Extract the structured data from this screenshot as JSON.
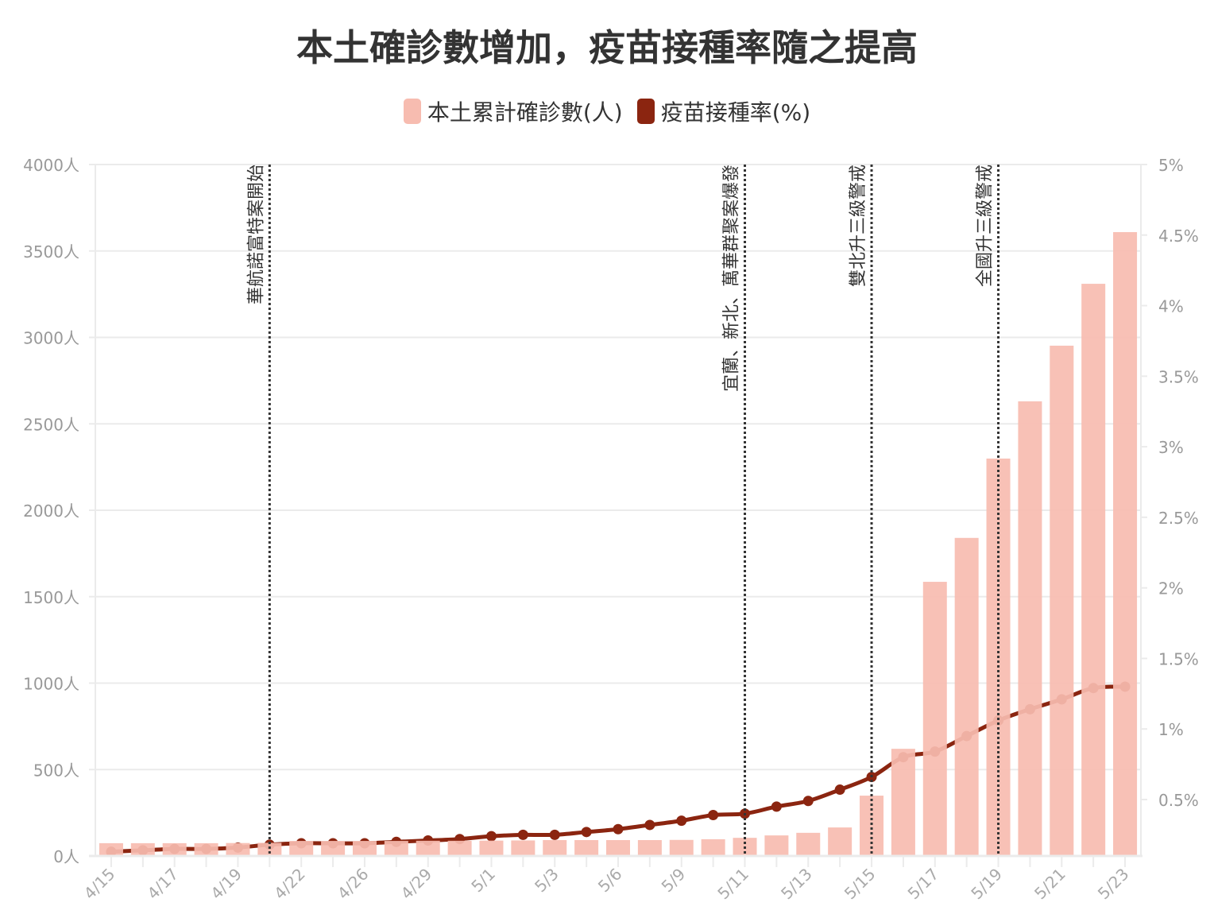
{
  "chart_data": {
    "type": "bar+line",
    "title": "本土確診數增加，疫苗接種率隨之提高",
    "categories": [
      "4/15",
      "",
      "4/17",
      "",
      "4/19",
      "",
      "4/22",
      "",
      "4/26",
      "",
      "4/29",
      "",
      "5/1",
      "",
      "5/3",
      "",
      "5/6",
      "",
      "5/9",
      "",
      "5/11",
      "",
      "5/13",
      "",
      "5/15",
      "",
      "5/17",
      "",
      "5/19",
      "",
      "5/21",
      "",
      "5/23"
    ],
    "series": [
      {
        "name": "本土累計確診數(人)",
        "type": "bar",
        "axis": "left",
        "color": "#f7bcb0",
        "values": [
          74,
          74,
          74,
          74,
          75,
          76,
          87,
          87,
          87,
          87,
          88,
          88,
          89,
          90,
          92,
          92,
          92,
          92,
          93,
          97,
          105,
          119,
          134,
          165,
          349,
          620,
          1586,
          1840,
          2299,
          2630,
          2952,
          3310,
          3609
        ]
      },
      {
        "name": "疫苗接種率(%)",
        "type": "line",
        "axis": "right",
        "color": "#8b2510",
        "values": [
          0.13,
          0.14,
          0.15,
          0.15,
          0.16,
          0.18,
          0.19,
          0.19,
          0.19,
          0.2,
          0.21,
          0.22,
          0.24,
          0.25,
          0.25,
          0.27,
          0.29,
          0.32,
          0.35,
          0.39,
          0.4,
          0.45,
          0.49,
          0.57,
          0.66,
          0.8,
          0.84,
          0.95,
          1.06,
          1.14,
          1.21,
          1.29,
          1.3
        ]
      }
    ],
    "left_axis": {
      "ylim": [
        0,
        4000
      ],
      "ticks": [
        0,
        500,
        1000,
        1500,
        2000,
        2500,
        3000,
        3500,
        4000
      ],
      "tick_labels": [
        "0人",
        "500人",
        "1000人",
        "1500人",
        "2000人",
        "2500人",
        "3000人",
        "3500人",
        "4000人"
      ]
    },
    "right_axis": {
      "ylim": [
        0.1,
        5
      ],
      "ticks": [
        0.5,
        1,
        1.5,
        2,
        2.5,
        3,
        3.5,
        4,
        4.5,
        5
      ],
      "tick_labels": [
        "0.5%",
        "1%",
        "1.5%",
        "2%",
        "2.5%",
        "3%",
        "3.5%",
        "4%",
        "4.5%",
        "5%"
      ]
    },
    "grid": true,
    "legend": "top-center",
    "annotations": [
      {
        "index": 5,
        "text": "華航諾富特案開始"
      },
      {
        "index": 20,
        "text": "宜蘭、新北、萬華群聚案爆發"
      },
      {
        "index": 24,
        "text": "雙北升三級警戒"
      },
      {
        "index": 28,
        "text": "全國升三級警戒"
      }
    ]
  }
}
